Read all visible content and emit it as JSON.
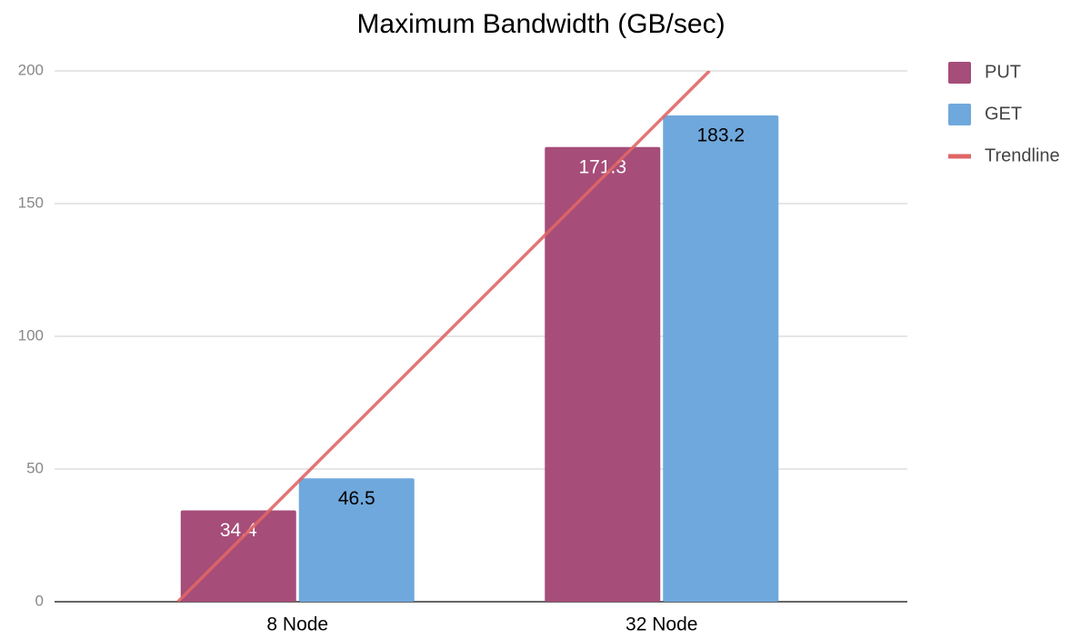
{
  "chart_data": {
    "type": "bar",
    "title": "Maximum Bandwidth (GB/sec)",
    "categories": [
      "8 Node",
      "32 Node"
    ],
    "series": [
      {
        "name": "PUT",
        "color": "#a64d79",
        "values": [
          34.4,
          171.3
        ],
        "label_color": "#ffffff"
      },
      {
        "name": "GET",
        "color": "#6fa8dc",
        "values": [
          46.5,
          183.2
        ],
        "label_color": "#000000"
      },
      {
        "name": "Trendline",
        "color": "#e06666",
        "type": "line",
        "values": [
          45,
          182
        ]
      }
    ],
    "ylim": [
      0,
      200
    ],
    "yticks": [
      0,
      50,
      100,
      150,
      200
    ],
    "grid": true,
    "legend": "right"
  }
}
